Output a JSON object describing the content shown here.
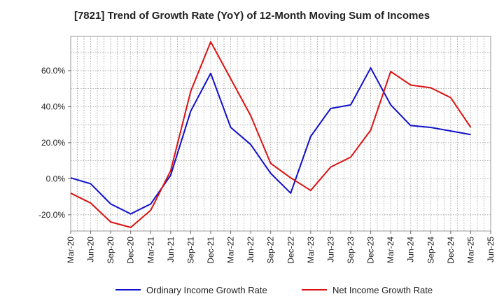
{
  "chart_data": {
    "type": "line",
    "title": "[7821]  Trend of Growth Rate (YoY) of 12-Month Moving Sum of Incomes",
    "xlabel": "",
    "ylabel": "",
    "x_ticks": [
      "Mar-20",
      "Jun-20",
      "Sep-20",
      "Dec-20",
      "Mar-21",
      "Jun-21",
      "Sep-21",
      "Dec-21",
      "Mar-22",
      "Jun-22",
      "Sep-22",
      "Dec-22",
      "Mar-23",
      "Jun-23",
      "Sep-23",
      "Dec-23",
      "Mar-24",
      "Jun-24",
      "Sep-24",
      "Dec-24",
      "Mar-25",
      "Jun-25"
    ],
    "y_ticks": [
      -20,
      0,
      20,
      40,
      60
    ],
    "y_tick_labels": [
      "-20.0%",
      "0.0%",
      "20.0%",
      "40.0%",
      "60.0%"
    ],
    "ylim": [
      -29,
      79
    ],
    "grid": true,
    "legend_position": "bottom",
    "series": [
      {
        "name": "Ordinary Income Growth Rate",
        "color": "#1010cc",
        "values": [
          0.5,
          -2.8,
          -14.0,
          -19.5,
          -14.0,
          2.0,
          37.5,
          58.5,
          28.5,
          19.0,
          3.0,
          -8.0,
          23.5,
          39.0,
          41.0,
          61.5,
          41.0,
          29.5,
          28.5,
          26.5,
          24.5
        ]
      },
      {
        "name": "Net Income Growth Rate",
        "color": "#dd1111",
        "values": [
          -8.0,
          -13.5,
          -24.0,
          -27.0,
          -17.5,
          4.5,
          48.5,
          76.0,
          55.5,
          35.0,
          8.5,
          0.5,
          -6.5,
          6.5,
          12.0,
          27.0,
          59.5,
          52.0,
          50.5,
          45.0,
          28.5
        ]
      }
    ]
  }
}
